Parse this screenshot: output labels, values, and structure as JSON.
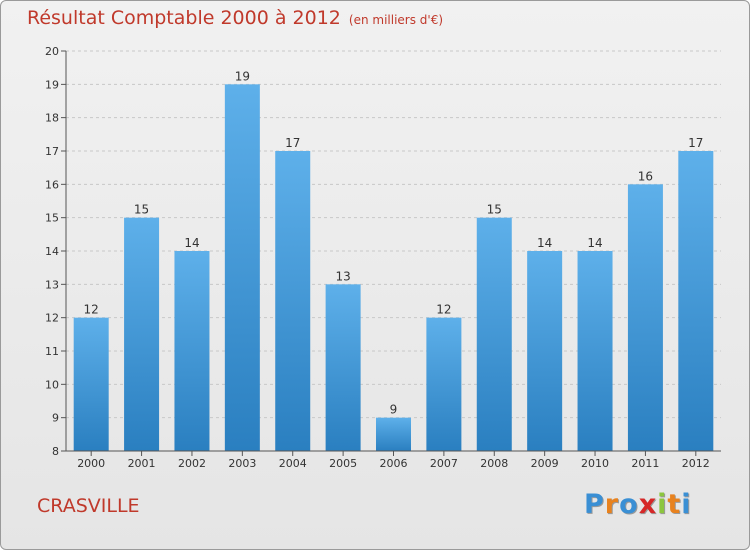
{
  "chart_data": {
    "type": "bar",
    "title": "Résultat Comptable 2000 à 2012",
    "subtitle": "(en milliers d'€)",
    "categories": [
      "2000",
      "2001",
      "2002",
      "2003",
      "2004",
      "2005",
      "2006",
      "2007",
      "2008",
      "2009",
      "2010",
      "2011",
      "2012"
    ],
    "values": [
      12,
      15,
      14,
      19,
      17,
      13,
      9,
      12,
      15,
      14,
      14,
      16,
      17
    ],
    "ylim": [
      8,
      20
    ],
    "yticks": [
      8,
      9,
      10,
      11,
      12,
      13,
      14,
      15,
      16,
      17,
      18,
      19,
      20
    ],
    "xlabel": "",
    "ylabel": "",
    "grid": true
  },
  "commune": "CRASVILLE",
  "logo": {
    "letters": [
      "P",
      "r",
      "o",
      "x",
      "i",
      "t",
      "i"
    ]
  },
  "colors": {
    "bar_top": "#5eb0ea",
    "bar_bottom": "#2a7fc0",
    "title": "#c0392b",
    "logo": [
      "#3a8fd4",
      "#e8821e",
      "#3a8fd4",
      "#d62828",
      "#8cc63f",
      "#e8821e",
      "#3a8fd4"
    ]
  }
}
